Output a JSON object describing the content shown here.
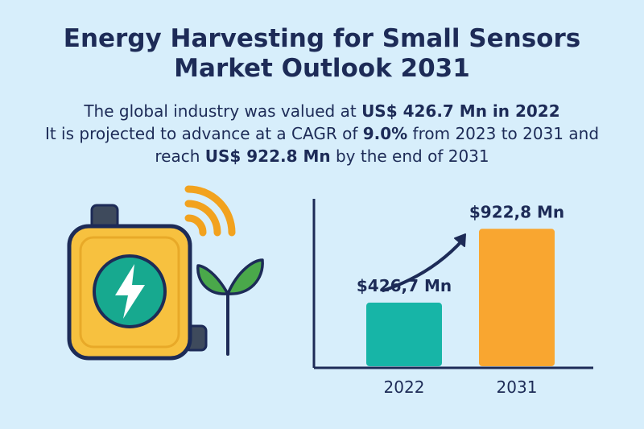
{
  "title": {
    "line1": "Energy Harvesting for Small Sensors",
    "line2": "Market Outlook 2031"
  },
  "summary": {
    "l1_pre": "The global industry was valued at ",
    "l1_bold": "US$ 426.7 Mn in 2022",
    "l2_pre": "It is projected to advance at a CAGR of ",
    "l2_bold": "9.0%",
    "l2_post": " from 2023 to 2031 and",
    "l3_pre": "reach ",
    "l3_bold": "US$ 922.8 Mn",
    "l3_post": " by the end of 2031"
  },
  "icons": {
    "device": "sensor-device-icon",
    "bolt": "lightning-bolt-icon",
    "signal": "wireless-signal-icon",
    "plant": "sprout-icon",
    "arrow": "growth-arrow-icon"
  },
  "colors": {
    "background": "#d7eefb",
    "text": "#1d2b57",
    "bar_2022": "#17b5a7",
    "bar_2031": "#f9a630",
    "device_body": "#f7c13f",
    "bolt_circle": "#17a98f",
    "leaf": "#4aa84a",
    "signal": "#f2a21e"
  },
  "chart_data": {
    "type": "bar",
    "categories": [
      "2022",
      "2031"
    ],
    "values": [
      426.7,
      922.8
    ],
    "data_labels": [
      "$426,7 Mn",
      "$922,8 Mn"
    ],
    "title": "",
    "xlabel": "",
    "ylabel": "",
    "ylim": [
      0,
      1000
    ],
    "grid": false
  }
}
